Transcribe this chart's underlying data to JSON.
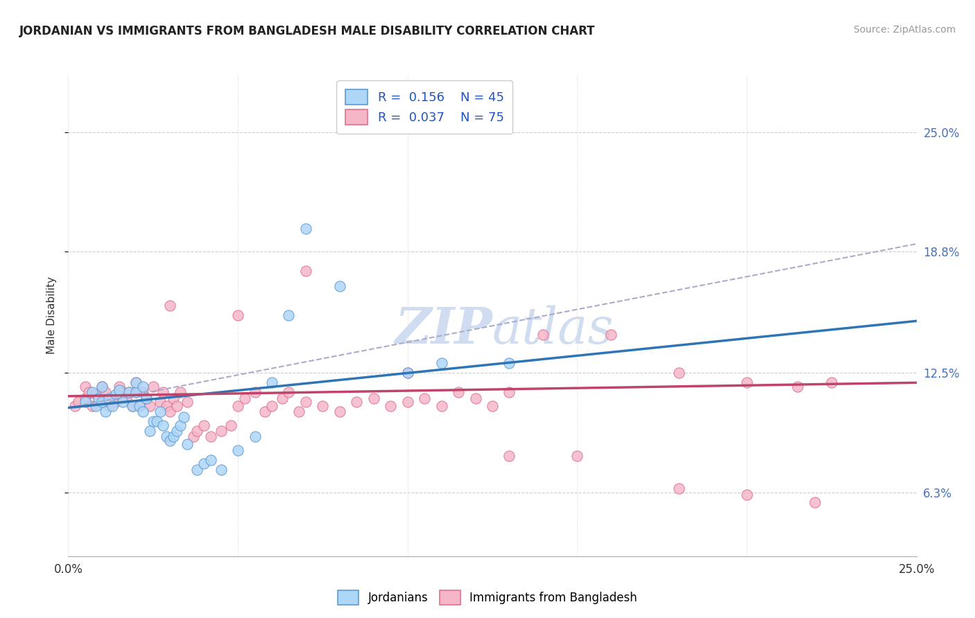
{
  "title": "JORDANIAN VS IMMIGRANTS FROM BANGLADESH MALE DISABILITY CORRELATION CHART",
  "source": "Source: ZipAtlas.com",
  "ylabel": "Male Disability",
  "color_blue_fill": "#AED6F7",
  "color_blue_edge": "#5B9BD5",
  "color_pink_fill": "#F5B7C8",
  "color_pink_edge": "#E07090",
  "color_blue_line": "#2E75B6",
  "color_pink_line": "#C0446A",
  "color_dashed": "#AAAACC",
  "watermark_color": "#D0DCF0",
  "xlim": [
    0.0,
    0.25
  ],
  "ylim": [
    0.03,
    0.28
  ],
  "x_ticks": [
    0.0,
    0.05,
    0.1,
    0.15,
    0.2,
    0.25
  ],
  "y_ticks": [
    0.063,
    0.125,
    0.188,
    0.25
  ],
  "y_tick_labels": [
    "6.3%",
    "12.5%",
    "18.8%",
    "25.0%"
  ],
  "x_tick_labels_show": [
    "0.0%",
    "25.0%"
  ],
  "legend_labels": [
    "Jordanians",
    "Immigrants from Bangladesh"
  ],
  "trend_blue_x0": 0.0,
  "trend_blue_y0": 0.107,
  "trend_blue_x1": 0.25,
  "trend_blue_y1": 0.152,
  "trend_pink_x0": 0.0,
  "trend_pink_y0": 0.113,
  "trend_pink_x1": 0.25,
  "trend_pink_y1": 0.12,
  "trend_dash_x0": 0.0,
  "trend_dash_y0": 0.107,
  "trend_dash_x1": 0.25,
  "trend_dash_y1": 0.192,
  "blue_x": [
    0.005,
    0.007,
    0.008,
    0.009,
    0.01,
    0.01,
    0.011,
    0.012,
    0.013,
    0.014,
    0.015,
    0.016,
    0.018,
    0.019,
    0.02,
    0.02,
    0.021,
    0.022,
    0.022,
    0.023,
    0.024,
    0.025,
    0.026,
    0.027,
    0.028,
    0.029,
    0.03,
    0.031,
    0.032,
    0.033,
    0.034,
    0.035,
    0.038,
    0.04,
    0.042,
    0.045,
    0.05,
    0.055,
    0.06,
    0.065,
    0.07,
    0.08,
    0.1,
    0.11,
    0.13
  ],
  "blue_y": [
    0.11,
    0.115,
    0.108,
    0.112,
    0.11,
    0.118,
    0.105,
    0.112,
    0.108,
    0.114,
    0.116,
    0.11,
    0.115,
    0.108,
    0.115,
    0.12,
    0.108,
    0.105,
    0.118,
    0.112,
    0.095,
    0.1,
    0.1,
    0.105,
    0.098,
    0.092,
    0.09,
    0.092,
    0.095,
    0.098,
    0.102,
    0.088,
    0.075,
    0.078,
    0.08,
    0.075,
    0.085,
    0.092,
    0.12,
    0.155,
    0.2,
    0.17,
    0.125,
    0.13,
    0.13
  ],
  "pink_x": [
    0.002,
    0.003,
    0.005,
    0.005,
    0.006,
    0.007,
    0.008,
    0.01,
    0.01,
    0.011,
    0.012,
    0.013,
    0.014,
    0.015,
    0.016,
    0.017,
    0.018,
    0.019,
    0.02,
    0.02,
    0.021,
    0.022,
    0.023,
    0.024,
    0.025,
    0.027,
    0.028,
    0.029,
    0.03,
    0.031,
    0.032,
    0.033,
    0.035,
    0.037,
    0.038,
    0.04,
    0.042,
    0.045,
    0.048,
    0.05,
    0.052,
    0.055,
    0.058,
    0.06,
    0.063,
    0.065,
    0.068,
    0.07,
    0.075,
    0.08,
    0.085,
    0.09,
    0.095,
    0.1,
    0.105,
    0.11,
    0.115,
    0.12,
    0.125,
    0.13,
    0.14,
    0.16,
    0.18,
    0.2,
    0.215,
    0.225,
    0.03,
    0.05,
    0.07,
    0.1,
    0.13,
    0.15,
    0.18,
    0.2,
    0.22
  ],
  "pink_y": [
    0.108,
    0.11,
    0.112,
    0.118,
    0.115,
    0.108,
    0.114,
    0.112,
    0.118,
    0.115,
    0.108,
    0.112,
    0.11,
    0.118,
    0.115,
    0.112,
    0.115,
    0.108,
    0.115,
    0.12,
    0.108,
    0.115,
    0.112,
    0.108,
    0.118,
    0.11,
    0.115,
    0.108,
    0.105,
    0.112,
    0.108,
    0.115,
    0.11,
    0.092,
    0.095,
    0.098,
    0.092,
    0.095,
    0.098,
    0.108,
    0.112,
    0.115,
    0.105,
    0.108,
    0.112,
    0.115,
    0.105,
    0.11,
    0.108,
    0.105,
    0.11,
    0.112,
    0.108,
    0.11,
    0.112,
    0.108,
    0.115,
    0.112,
    0.108,
    0.115,
    0.145,
    0.145,
    0.125,
    0.12,
    0.118,
    0.12,
    0.16,
    0.155,
    0.178,
    0.125,
    0.082,
    0.082,
    0.065,
    0.062,
    0.058
  ]
}
